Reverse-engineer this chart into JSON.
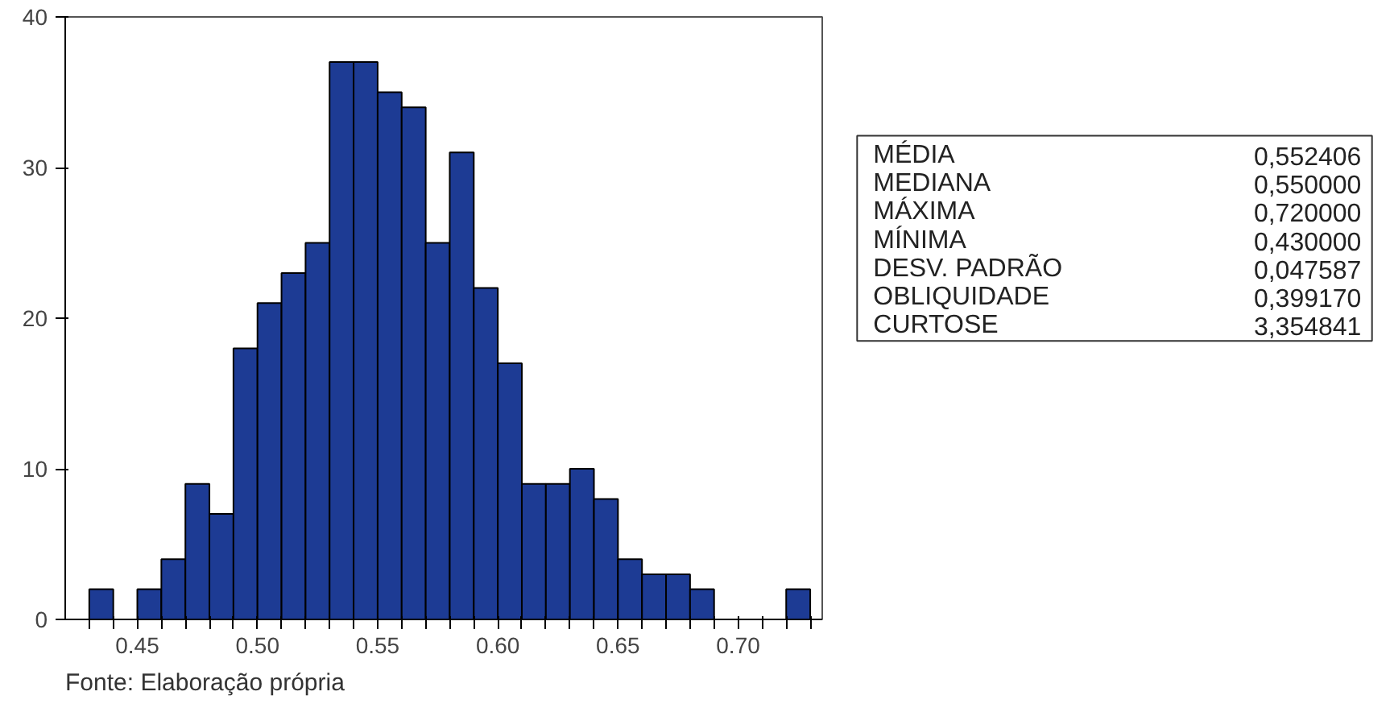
{
  "chart_data": [
    {
      "type": "histogram",
      "color": "#1d3b94",
      "bins": [
        0.43,
        0.44,
        0.45,
        0.46,
        0.47,
        0.48,
        0.49,
        0.5,
        0.51,
        0.52,
        0.53,
        0.54,
        0.55,
        0.56,
        0.57,
        0.58,
        0.59,
        0.6,
        0.61,
        0.62,
        0.63,
        0.64,
        0.65,
        0.66,
        0.67,
        0.68,
        0.69,
        0.7,
        0.71,
        0.72,
        0.73
      ],
      "values": [
        2,
        0,
        2,
        4,
        9,
        7,
        18,
        21,
        23,
        25,
        37,
        37,
        35,
        34,
        25,
        31,
        22,
        17,
        9,
        9,
        10,
        8,
        4,
        3,
        3,
        2,
        0,
        0,
        0,
        2
      ],
      "xlim": [
        0.42,
        0.735
      ],
      "ylim": [
        0,
        40
      ],
      "xticks": [
        {
          "value": 0.43,
          "label": null
        },
        {
          "value": 0.44,
          "label": null
        },
        {
          "value": 0.45,
          "label": "0.45"
        },
        {
          "value": 0.46,
          "label": null
        },
        {
          "value": 0.47,
          "label": null
        },
        {
          "value": 0.48,
          "label": null
        },
        {
          "value": 0.49,
          "label": null
        },
        {
          "value": 0.5,
          "label": "0.50"
        },
        {
          "value": 0.51,
          "label": null
        },
        {
          "value": 0.52,
          "label": null
        },
        {
          "value": 0.53,
          "label": null
        },
        {
          "value": 0.54,
          "label": null
        },
        {
          "value": 0.55,
          "label": "0.55"
        },
        {
          "value": 0.56,
          "label": null
        },
        {
          "value": 0.57,
          "label": null
        },
        {
          "value": 0.58,
          "label": null
        },
        {
          "value": 0.59,
          "label": null
        },
        {
          "value": 0.6,
          "label": "0.60"
        },
        {
          "value": 0.61,
          "label": null
        },
        {
          "value": 0.62,
          "label": null
        },
        {
          "value": 0.63,
          "label": null
        },
        {
          "value": 0.64,
          "label": null
        },
        {
          "value": 0.65,
          "label": "0.65"
        },
        {
          "value": 0.66,
          "label": null
        },
        {
          "value": 0.67,
          "label": null
        },
        {
          "value": 0.68,
          "label": null
        },
        {
          "value": 0.69,
          "label": null
        },
        {
          "value": 0.7,
          "label": "0.70"
        },
        {
          "value": 0.71,
          "label": null
        },
        {
          "value": 0.72,
          "label": null
        },
        {
          "value": 0.73,
          "label": null
        }
      ],
      "yticks": [
        0,
        10,
        20,
        30,
        40
      ],
      "annotations": [
        "Fonte: Elaboração própria"
      ]
    },
    {
      "type": "other",
      "categories": [
        "MÉDIA",
        "MEDIANA",
        "MÁXIMA",
        "MÍNIMA",
        "DESV. PADRÃO",
        "OBLIQUIDADE",
        "CURTOSE"
      ],
      "value_labels": [
        "0,552406",
        "0,550000",
        "0,720000",
        "0,430000",
        "0,047587",
        "0,399170",
        "3,354841"
      ]
    }
  ]
}
